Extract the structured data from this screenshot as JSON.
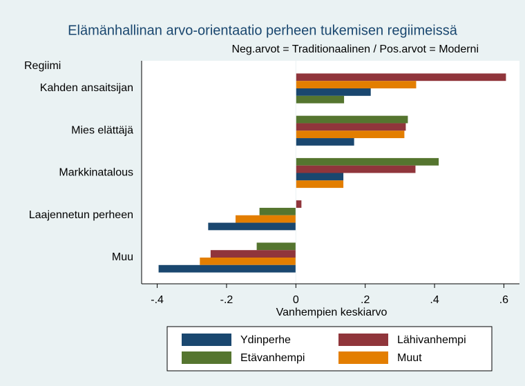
{
  "chart_data": {
    "type": "hbar",
    "title": "Elämänhallinan arvo-orientaatio perheen tukemisen regiimeissä",
    "subtitle": "Neg.arvot = Traditionaalinen / Pos.arvot = Moderni",
    "category_axis_label": "Regiimi",
    "x_label": "Vanhempien keskiarvo",
    "categories": [
      "Kahden ansaitsijan",
      "Mies elättäjä",
      "Markkinatalous",
      "Laajennetun perheen",
      "Muu"
    ],
    "series": [
      {
        "name": "Ydinperhe",
        "color": "#1a476f",
        "values": [
          0.216,
          0.168,
          0.137,
          -0.253,
          -0.396
        ]
      },
      {
        "name": "Lähivanhempi",
        "color": "#90353b",
        "values": [
          0.606,
          0.317,
          0.345,
          0.016,
          -0.246
        ]
      },
      {
        "name": "Etävanhempi",
        "color": "#55752f",
        "values": [
          0.139,
          0.323,
          0.412,
          -0.105,
          -0.113
        ]
      },
      {
        "name": "Muut",
        "color": "#e37e00",
        "values": [
          0.347,
          0.313,
          0.137,
          -0.174,
          -0.277
        ]
      }
    ],
    "xlim": [
      -0.445,
      0.645
    ],
    "xticks": [
      {
        "value": -0.4,
        "label": "-.4"
      },
      {
        "value": -0.2,
        "label": "-.2"
      },
      0,
      {
        "value": 0.2,
        "label": ".2"
      },
      {
        "value": 0.4,
        "label": ".4"
      },
      {
        "value": 0.6,
        "label": ".6"
      }
    ],
    "legend": "bottom"
  }
}
